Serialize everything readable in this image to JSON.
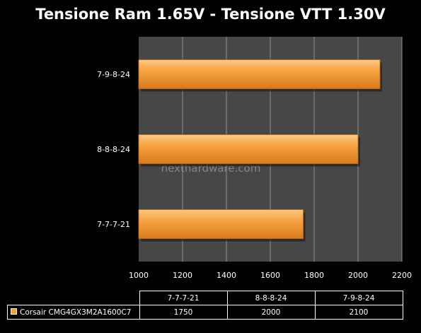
{
  "chart_data": {
    "type": "bar",
    "orientation": "horizontal",
    "title": "Tensione Ram 1.65V - Tensione VTT 1.30V",
    "categories": [
      "7-7-7-21",
      "8-8-8-24",
      "7-9-8-24"
    ],
    "series": [
      {
        "name": "Corsair CMG4GX3M2A1600C7",
        "values": [
          1750,
          2000,
          2100
        ]
      }
    ],
    "xlim": [
      1000,
      2200
    ],
    "xticks": [
      "1000",
      "1200",
      "1400",
      "1600",
      "1800",
      "2000",
      "2200"
    ],
    "grid": true,
    "legend": "data-table",
    "colors": {
      "bar": "#f59a36",
      "plot_background": "#474747",
      "page_background": "#000000"
    },
    "watermark": "nexthardware.com"
  }
}
